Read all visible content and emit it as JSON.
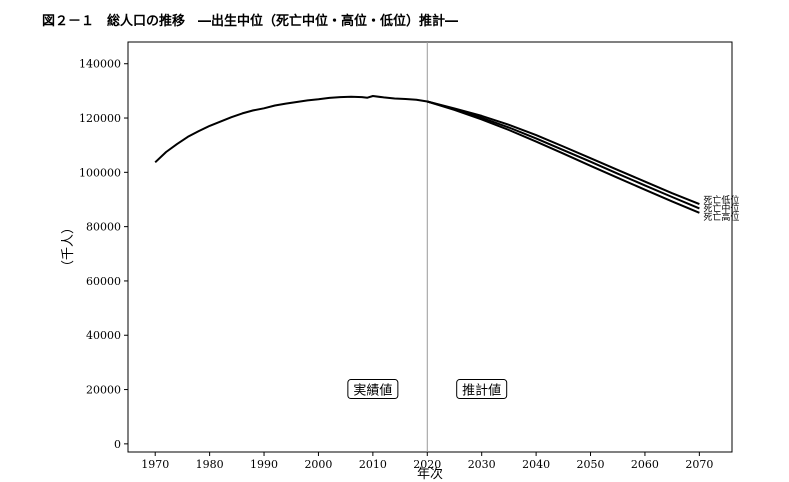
{
  "figure_title": "図２－１　総人口の推移　―出生中位（死亡中位・高位・低位）推計―",
  "chart_data": {
    "type": "line",
    "xlabel": "年次",
    "ylabel": "（千人）",
    "xlim": [
      1965,
      2076
    ],
    "ylim": [
      -3000,
      148000
    ],
    "x_ticks": [
      1970,
      1980,
      1990,
      2000,
      2010,
      2020,
      2030,
      2040,
      2050,
      2060,
      2070
    ],
    "y_ticks": [
      0,
      20000,
      40000,
      60000,
      80000,
      100000,
      120000,
      140000
    ],
    "y_tick_labels": [
      "0",
      "20000",
      "40000",
      "60000",
      "80000",
      "100000",
      "120000",
      "140000"
    ],
    "divider_year": 2020,
    "grid": false,
    "annotations": [
      {
        "text": "実績値",
        "x": 2010,
        "y": 20000
      },
      {
        "text": "推計値",
        "x": 2030,
        "y": 20000
      }
    ],
    "actual": {
      "x": [
        1970,
        1972,
        1974,
        1976,
        1978,
        1980,
        1982,
        1984,
        1986,
        1988,
        1990,
        1992,
        1994,
        1996,
        1998,
        2000,
        2002,
        2004,
        2006,
        2008,
        2009,
        2010,
        2012,
        2014,
        2016,
        2018,
        2020
      ],
      "y": [
        103700,
        107500,
        110400,
        113100,
        115200,
        117100,
        118700,
        120300,
        121700,
        122800,
        123600,
        124600,
        125300,
        125900,
        126500,
        126900,
        127400,
        127700,
        127800,
        127700,
        127500,
        128100,
        127600,
        127200,
        127000,
        126700,
        126100
      ]
    },
    "series": [
      {
        "name": "死亡低位",
        "x": [
          2020,
          2025,
          2030,
          2035,
          2040,
          2045,
          2050,
          2055,
          2060,
          2065,
          2070
        ],
        "y": [
          126100,
          123500,
          120800,
          117500,
          113700,
          109500,
          105200,
          100900,
          96600,
          92300,
          88300
        ]
      },
      {
        "name": "死亡中位",
        "x": [
          2020,
          2025,
          2030,
          2035,
          2040,
          2045,
          2050,
          2055,
          2060,
          2065,
          2070
        ],
        "y": [
          126100,
          123300,
          120100,
          116500,
          112500,
          108200,
          103900,
          99500,
          95200,
          90900,
          86700
        ]
      },
      {
        "name": "死亡高位",
        "x": [
          2020,
          2025,
          2030,
          2035,
          2040,
          2045,
          2050,
          2055,
          2060,
          2065,
          2070
        ],
        "y": [
          126100,
          123000,
          119500,
          115600,
          111300,
          106900,
          102400,
          98000,
          93600,
          89300,
          85100
        ]
      }
    ]
  }
}
